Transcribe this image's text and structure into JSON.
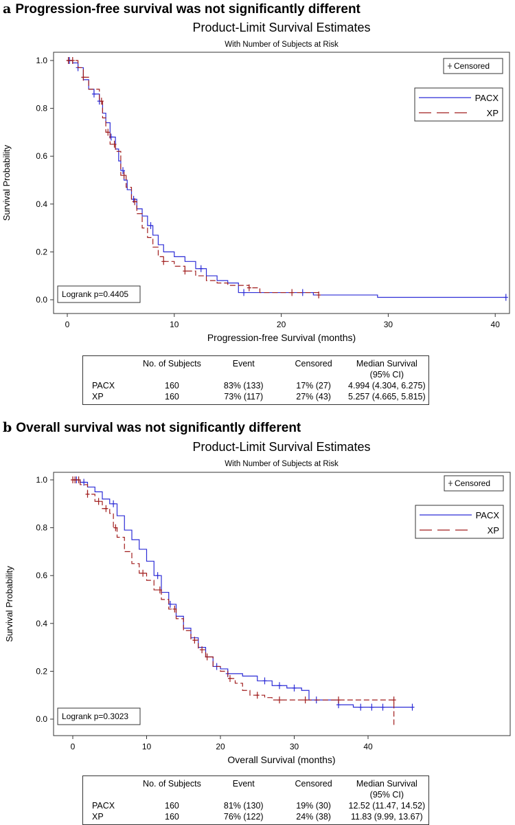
{
  "panels": [
    {
      "letter": "a",
      "heading": "Progression-free survival was not significantly different",
      "table": {
        "headers": [
          "",
          "No. of Subjects",
          "Event",
          "Censored",
          "Median Survival (95% CI)"
        ],
        "rows": [
          [
            "PACX",
            "160",
            "83% (133)",
            "17% (27)",
            "4.994 (4.304, 6.275)"
          ],
          [
            "XP",
            "160",
            "73% (117)",
            "27% (43)",
            "5.257 (4.665, 5.815)"
          ]
        ]
      }
    },
    {
      "letter": "b",
      "heading": "Overall survival was not significantly different",
      "table": {
        "headers": [
          "",
          "No. of Subjects",
          "Event",
          "Censored",
          "Median Survival (95% CI)"
        ],
        "rows": [
          [
            "PACX",
            "160",
            "81% (130)",
            "19% (30)",
            "12.52 (11.47, 14.52)"
          ],
          [
            "XP",
            "160",
            "76% (122)",
            "24% (38)",
            "11.83 (9.99, 13.67)"
          ]
        ]
      }
    }
  ],
  "colors": {
    "PACX": "#2b2bd6",
    "XP": "#a01c1c"
  },
  "chart_data": [
    {
      "type": "line",
      "title": "Product-Limit Survival Estimates",
      "subtitle": "With Number of Subjects at Risk",
      "xlabel": "Progression-free Survival (months)",
      "ylabel": "Survival Probability",
      "xticks": [
        0,
        10,
        20,
        30,
        40
      ],
      "yticks": [
        "0.0",
        "0.2",
        "0.4",
        "0.6",
        "0.8",
        "1.0"
      ],
      "xlim": [
        0,
        42
      ],
      "ylim": [
        0,
        1
      ],
      "annotation": "Logrank p=0.4405",
      "censored_label": "Censored",
      "legend_position": "top-right",
      "series": [
        {
          "name": "PACX",
          "steps": [
            [
              0,
              1
            ],
            [
              0.5,
              0.99
            ],
            [
              1,
              0.97
            ],
            [
              1.5,
              0.92
            ],
            [
              2,
              0.88
            ],
            [
              2.5,
              0.86
            ],
            [
              3,
              0.83
            ],
            [
              3.3,
              0.78
            ],
            [
              3.6,
              0.74
            ],
            [
              4,
              0.68
            ],
            [
              4.5,
              0.63
            ],
            [
              4.8,
              0.58
            ],
            [
              5,
              0.54
            ],
            [
              5.3,
              0.5
            ],
            [
              5.6,
              0.46
            ],
            [
              6,
              0.42
            ],
            [
              6.5,
              0.38
            ],
            [
              7,
              0.35
            ],
            [
              7.5,
              0.31
            ],
            [
              8,
              0.27
            ],
            [
              8.5,
              0.23
            ],
            [
              9,
              0.2
            ],
            [
              10,
              0.18
            ],
            [
              11,
              0.16
            ],
            [
              12,
              0.13
            ],
            [
              13,
              0.1
            ],
            [
              14,
              0.08
            ],
            [
              15,
              0.07
            ],
            [
              16,
              0.03
            ],
            [
              20,
              0.03
            ],
            [
              23,
              0.02
            ],
            [
              29,
              0.01
            ],
            [
              41,
              0.01
            ]
          ],
          "censored": [
            0.2,
            1,
            2.5,
            3,
            4.1,
            5.2,
            6.2,
            7.8,
            12.5,
            16.5,
            22,
            41
          ]
        },
        {
          "name": "XP",
          "steps": [
            [
              0,
              1
            ],
            [
              1,
              0.97
            ],
            [
              1.5,
              0.93
            ],
            [
              2,
              0.88
            ],
            [
              3,
              0.83
            ],
            [
              3.3,
              0.76
            ],
            [
              3.6,
              0.7
            ],
            [
              4,
              0.65
            ],
            [
              4.5,
              0.62
            ],
            [
              5,
              0.52
            ],
            [
              5.5,
              0.47
            ],
            [
              6,
              0.41
            ],
            [
              6.5,
              0.36
            ],
            [
              7,
              0.3
            ],
            [
              7.5,
              0.26
            ],
            [
              8,
              0.22
            ],
            [
              8.5,
              0.18
            ],
            [
              9,
              0.16
            ],
            [
              10,
              0.14
            ],
            [
              11,
              0.12
            ],
            [
              12,
              0.1
            ],
            [
              13,
              0.08
            ],
            [
              14,
              0.07
            ],
            [
              15,
              0.06
            ],
            [
              17,
              0.05
            ],
            [
              18,
              0.03
            ],
            [
              23.5,
              0.02
            ]
          ],
          "censored": [
            0.1,
            0.5,
            1.5,
            3.2,
            3.8,
            4.4,
            5.3,
            6.3,
            9,
            11,
            17,
            21,
            23.5
          ]
        }
      ]
    },
    {
      "type": "line",
      "title": "Product-Limit Survival Estimates",
      "subtitle": "With Number of Subjects at Risk",
      "xlabel": "Overall Survival (months)",
      "ylabel": "Survival Probability",
      "xticks": [
        0,
        10,
        20,
        30,
        40
      ],
      "yticks": [
        "0.0",
        "0.2",
        "0.4",
        "0.6",
        "0.8",
        "1.0"
      ],
      "xlim": [
        0,
        46
      ],
      "ylim": [
        0,
        1
      ],
      "annotation": "Logrank p=0.3023",
      "censored_label": "Censored",
      "legend_position": "top-right",
      "series": [
        {
          "name": "PACX",
          "steps": [
            [
              0,
              1
            ],
            [
              1,
              0.99
            ],
            [
              2,
              0.97
            ],
            [
              3,
              0.95
            ],
            [
              4,
              0.92
            ],
            [
              5,
              0.9
            ],
            [
              6,
              0.85
            ],
            [
              7,
              0.79
            ],
            [
              8,
              0.75
            ],
            [
              9,
              0.71
            ],
            [
              10,
              0.66
            ],
            [
              11,
              0.6
            ],
            [
              12,
              0.53
            ],
            [
              13,
              0.48
            ],
            [
              14,
              0.43
            ],
            [
              15,
              0.38
            ],
            [
              16,
              0.34
            ],
            [
              17,
              0.3
            ],
            [
              18,
              0.26
            ],
            [
              19,
              0.22
            ],
            [
              20,
              0.21
            ],
            [
              21,
              0.19
            ],
            [
              23,
              0.18
            ],
            [
              25,
              0.16
            ],
            [
              27,
              0.14
            ],
            [
              29,
              0.13
            ],
            [
              31,
              0.12
            ],
            [
              32,
              0.08
            ],
            [
              36,
              0.06
            ],
            [
              38,
              0.05
            ],
            [
              46,
              0.05
            ]
          ],
          "censored": [
            0.5,
            1.5,
            5.5,
            11.5,
            13.2,
            19.5,
            21,
            26,
            28,
            30,
            33,
            36,
            39,
            40.5,
            42,
            46
          ]
        },
        {
          "name": "XP",
          "steps": [
            [
              0,
              1
            ],
            [
              1,
              0.98
            ],
            [
              2,
              0.94
            ],
            [
              3,
              0.91
            ],
            [
              4,
              0.88
            ],
            [
              5,
              0.86
            ],
            [
              5.5,
              0.8
            ],
            [
              6,
              0.76
            ],
            [
              7,
              0.7
            ],
            [
              8,
              0.65
            ],
            [
              9,
              0.61
            ],
            [
              10,
              0.58
            ],
            [
              11,
              0.54
            ],
            [
              12,
              0.5
            ],
            [
              13,
              0.46
            ],
            [
              14,
              0.42
            ],
            [
              15,
              0.37
            ],
            [
              16,
              0.33
            ],
            [
              17,
              0.29
            ],
            [
              18,
              0.26
            ],
            [
              19,
              0.22
            ],
            [
              20,
              0.2
            ],
            [
              21,
              0.17
            ],
            [
              22,
              0.15
            ],
            [
              23,
              0.12
            ],
            [
              24,
              0.1
            ],
            [
              26,
              0.09
            ],
            [
              27,
              0.08
            ],
            [
              31,
              0.08
            ],
            [
              43.5,
              0.08
            ],
            [
              43.5,
              -0.03
            ]
          ],
          "censored": [
            0,
            0.3,
            0.8,
            2,
            3.5,
            4.5,
            5.8,
            9.5,
            11.8,
            13.8,
            16.5,
            17.5,
            18.2,
            21.3,
            25,
            28,
            31.5,
            36,
            43.5
          ]
        }
      ]
    }
  ]
}
